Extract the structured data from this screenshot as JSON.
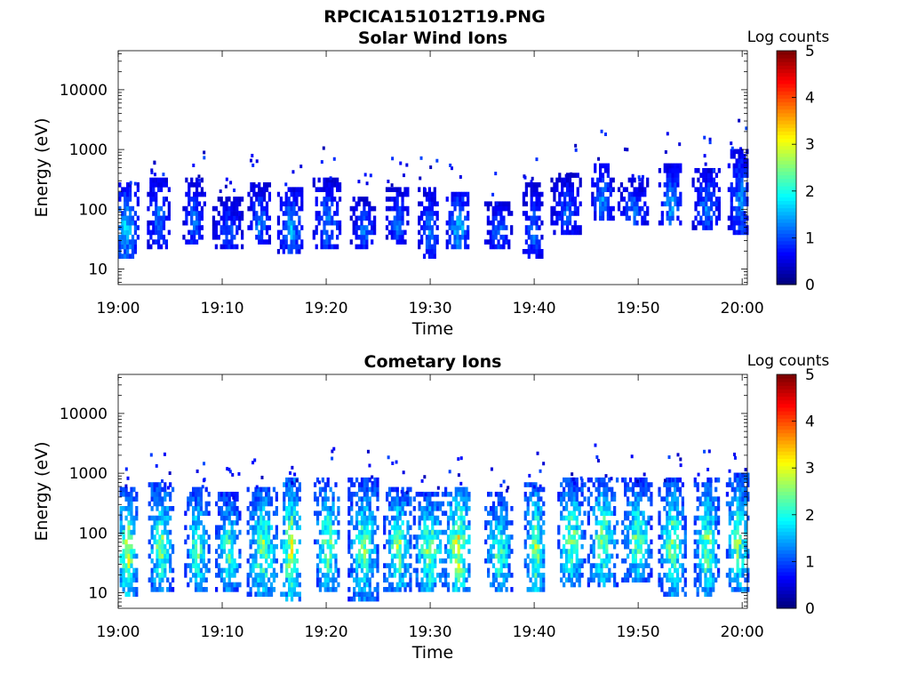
{
  "figure": {
    "title": "RPCICA151012T19.PNG"
  },
  "chart_data": [
    {
      "type": "heatmap",
      "title": "Solar Wind Ions",
      "xlabel": "Time",
      "ylabel": "Energy (eV)",
      "x_ticks": [
        "19:00",
        "19:10",
        "19:20",
        "19:30",
        "19:40",
        "19:50",
        "20:00"
      ],
      "x_range_minutes": [
        0,
        60.5
      ],
      "y_ticks": [
        "10",
        "100",
        "1000",
        "10000"
      ],
      "y_tick_values": [
        10,
        100,
        1000,
        10000
      ],
      "y_scale": "log",
      "ylim": [
        5.5,
        45000
      ],
      "grid": false,
      "colorbar": {
        "title": "Log counts",
        "ticks": [
          "0",
          "1",
          "2",
          "3",
          "4",
          "5"
        ],
        "range": [
          0,
          5
        ],
        "colormap": "jet"
      },
      "bursts": [
        {
          "t": 0.6,
          "emin": 18,
          "emax": 230,
          "peak": 1.8
        },
        {
          "t": 3.8,
          "emin": 25,
          "emax": 330,
          "peak": 1.4
        },
        {
          "t": 7.2,
          "emin": 30,
          "emax": 280,
          "peak": 1.3
        },
        {
          "t": 10.5,
          "emin": 25,
          "emax": 150,
          "peak": 1.2
        },
        {
          "t": 13.5,
          "emin": 30,
          "emax": 230,
          "peak": 1.4
        },
        {
          "t": 16.5,
          "emin": 20,
          "emax": 220,
          "peak": 1.6
        },
        {
          "t": 20.0,
          "emin": 25,
          "emax": 300,
          "peak": 1.4
        },
        {
          "t": 23.5,
          "emin": 25,
          "emax": 150,
          "peak": 1.3
        },
        {
          "t": 26.8,
          "emin": 30,
          "emax": 220,
          "peak": 1.3
        },
        {
          "t": 29.8,
          "emin": 18,
          "emax": 200,
          "peak": 1.4
        },
        {
          "t": 32.6,
          "emin": 25,
          "emax": 190,
          "peak": 1.8
        },
        {
          "t": 36.5,
          "emin": 25,
          "emax": 130,
          "peak": 1.3
        },
        {
          "t": 39.8,
          "emin": 18,
          "emax": 230,
          "peak": 1.3
        },
        {
          "t": 43.0,
          "emin": 45,
          "emax": 350,
          "peak": 1.2
        },
        {
          "t": 46.5,
          "emin": 80,
          "emax": 550,
          "peak": 1.5
        },
        {
          "t": 49.5,
          "emin": 60,
          "emax": 300,
          "peak": 1.3
        },
        {
          "t": 53.0,
          "emin": 60,
          "emax": 500,
          "peak": 1.6
        },
        {
          "t": 56.5,
          "emin": 55,
          "emax": 450,
          "peak": 1.4
        },
        {
          "t": 59.8,
          "emin": 45,
          "emax": 900,
          "peak": 1.5
        }
      ]
    },
    {
      "type": "heatmap",
      "title": "Cometary Ions",
      "xlabel": "Time",
      "ylabel": "Energy (eV)",
      "x_ticks": [
        "19:00",
        "19:10",
        "19:20",
        "19:30",
        "19:40",
        "19:50",
        "20:00"
      ],
      "x_range_minutes": [
        0,
        60.5
      ],
      "y_ticks": [
        "10",
        "100",
        "1000",
        "10000"
      ],
      "y_tick_values": [
        10,
        100,
        1000,
        10000
      ],
      "y_scale": "log",
      "ylim": [
        5.5,
        45000
      ],
      "grid": false,
      "colorbar": {
        "title": "Log counts",
        "ticks": [
          "0",
          "1",
          "2",
          "3",
          "4",
          "5"
        ],
        "range": [
          0,
          5
        ],
        "colormap": "jet"
      },
      "bursts": [
        {
          "t": 0.8,
          "emin": 10,
          "emax": 500,
          "peak": 3.2
        },
        {
          "t": 4.0,
          "emin": 12,
          "emax": 600,
          "peak": 2.8
        },
        {
          "t": 7.5,
          "emin": 12,
          "emax": 500,
          "peak": 2.6
        },
        {
          "t": 10.5,
          "emin": 12,
          "emax": 400,
          "peak": 2.6
        },
        {
          "t": 13.8,
          "emin": 10,
          "emax": 550,
          "peak": 2.8
        },
        {
          "t": 16.5,
          "emin": 8,
          "emax": 700,
          "peak": 3.3
        },
        {
          "t": 20.0,
          "emin": 12,
          "emax": 700,
          "peak": 2.8
        },
        {
          "t": 23.5,
          "emin": 8,
          "emax": 700,
          "peak": 2.7
        },
        {
          "t": 26.8,
          "emin": 12,
          "emax": 500,
          "peak": 2.8
        },
        {
          "t": 29.8,
          "emin": 12,
          "emax": 450,
          "peak": 2.8
        },
        {
          "t": 32.6,
          "emin": 12,
          "emax": 550,
          "peak": 3.3
        },
        {
          "t": 36.5,
          "emin": 12,
          "emax": 400,
          "peak": 2.6
        },
        {
          "t": 40.0,
          "emin": 12,
          "emax": 600,
          "peak": 3.0
        },
        {
          "t": 43.5,
          "emin": 15,
          "emax": 700,
          "peak": 2.8
        },
        {
          "t": 46.5,
          "emin": 15,
          "emax": 800,
          "peak": 2.8
        },
        {
          "t": 49.8,
          "emin": 18,
          "emax": 700,
          "peak": 2.6
        },
        {
          "t": 53.2,
          "emin": 10,
          "emax": 800,
          "peak": 2.8
        },
        {
          "t": 56.5,
          "emin": 10,
          "emax": 750,
          "peak": 2.8
        },
        {
          "t": 59.5,
          "emin": 12,
          "emax": 900,
          "peak": 2.8
        }
      ]
    }
  ]
}
